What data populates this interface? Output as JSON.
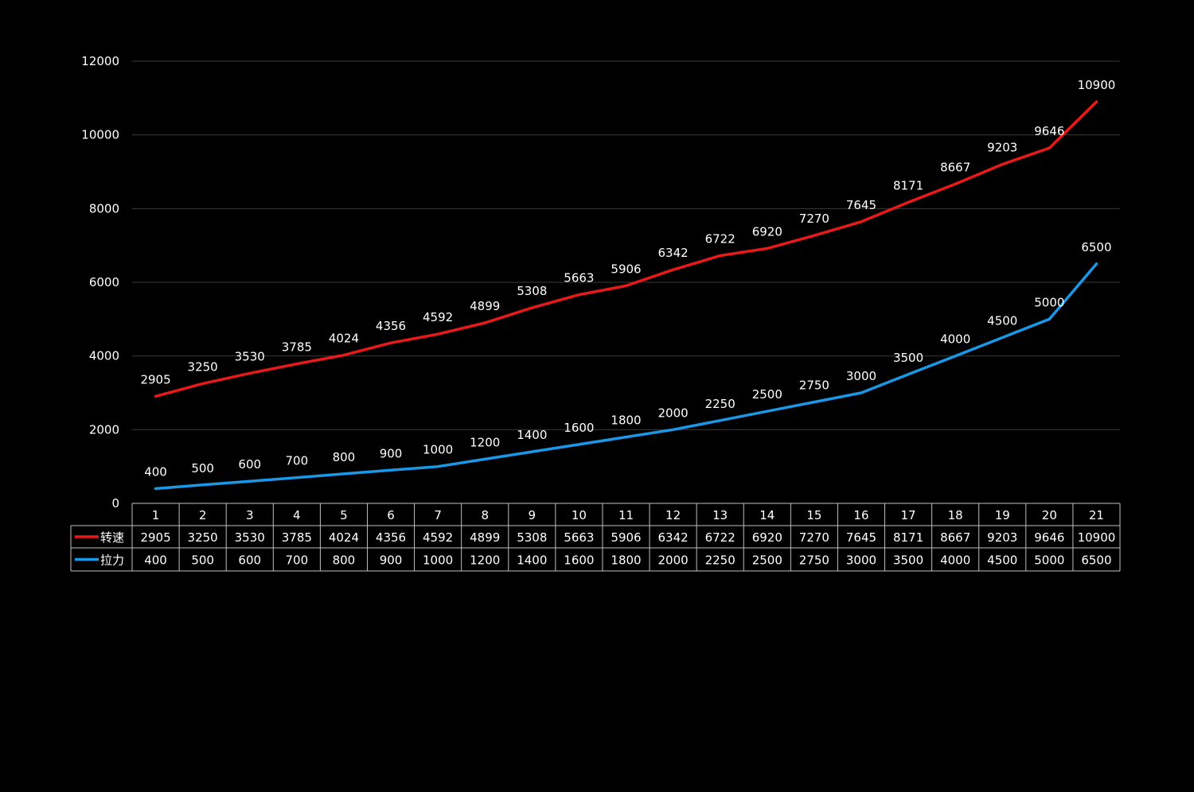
{
  "colors": {
    "background": "#000000",
    "grid": "#3a3a3a",
    "table_border": "#bfbfbf",
    "text": "#ffffff"
  },
  "chart_data": {
    "type": "line",
    "categories": [
      "1",
      "2",
      "3",
      "4",
      "5",
      "6",
      "7",
      "8",
      "9",
      "10",
      "11",
      "12",
      "13",
      "14",
      "15",
      "16",
      "17",
      "18",
      "19",
      "20",
      "21"
    ],
    "series": [
      {
        "name": "转速",
        "color": "#e8191a",
        "values": [
          2905,
          3250,
          3530,
          3785,
          4024,
          4356,
          4592,
          4899,
          5308,
          5663,
          5906,
          6342,
          6722,
          6920,
          7270,
          7645,
          8171,
          8667,
          9203,
          9646,
          10900
        ]
      },
      {
        "name": "拉力",
        "color": "#1a97e6",
        "values": [
          400,
          500,
          600,
          700,
          800,
          900,
          1000,
          1200,
          1400,
          1600,
          1800,
          2000,
          2250,
          2500,
          2750,
          3000,
          3500,
          4000,
          4500,
          5000,
          6500
        ]
      }
    ],
    "ylim": [
      0,
      12000
    ],
    "yticks": [
      0,
      2000,
      4000,
      6000,
      8000,
      10000,
      12000
    ],
    "grid": true,
    "data_labels": true,
    "legend": "data-table-below",
    "title": "",
    "xlabel": "",
    "ylabel": ""
  }
}
